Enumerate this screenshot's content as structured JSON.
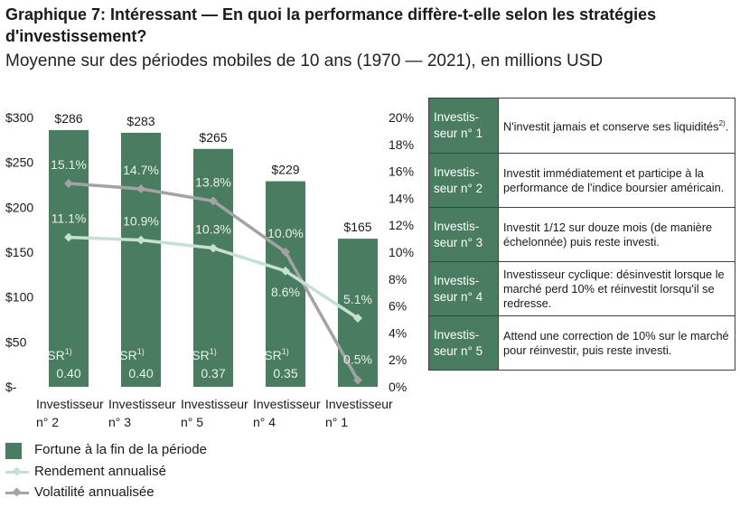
{
  "title": "Graphique 7: Intéressant — En quoi la performance diffère-t-elle selon les stratégies d'investissement?",
  "subtitle": "Moyenne sur des périodes mobiles de 10 ans (1970 — 2021), en millions USD",
  "chart_data": {
    "type": "bar",
    "categories": [
      [
        "Investisseur",
        "n° 2"
      ],
      [
        "Investisseur",
        "n° 3"
      ],
      [
        "Investisseur",
        "n° 5"
      ],
      [
        "Investisseur",
        "n° 4"
      ],
      [
        "Investisseur",
        "n° 1"
      ]
    ],
    "y_left": {
      "ticks": [
        "$-",
        "$50",
        "$100",
        "$150",
        "$200",
        "$250",
        "$300"
      ],
      "ylim": [
        0,
        300
      ]
    },
    "y_right": {
      "ticks": [
        "0%",
        "2%",
        "4%",
        "6%",
        "8%",
        "10%",
        "12%",
        "14%",
        "16%",
        "18%",
        "20%"
      ],
      "ylim": [
        0,
        20
      ]
    },
    "series": [
      {
        "name": "Fortune à la fin de la période",
        "kind": "bar",
        "axis": "left",
        "values": [
          286,
          283,
          265,
          229,
          165
        ],
        "labels": [
          "$286",
          "$283",
          "$265",
          "$229",
          "$165"
        ]
      },
      {
        "name": "Rendement annualisé",
        "kind": "line",
        "axis": "right",
        "values": [
          11.1,
          10.9,
          10.3,
          8.6,
          5.1
        ],
        "labels": [
          "11.1%",
          "10.9%",
          "10.3%",
          "8.6%",
          "5.1%"
        ]
      },
      {
        "name": "Volatilité annualisée",
        "kind": "line",
        "axis": "right",
        "values": [
          15.1,
          14.7,
          13.8,
          10.0,
          0.5
        ],
        "labels": [
          "15.1%",
          "14.7%",
          "13.8%",
          "10.0%",
          "0.5%"
        ]
      }
    ],
    "sharpe": {
      "label": "SR",
      "footnote": "1)",
      "values": [
        "0.40",
        "0.40",
        "0.37",
        "0.35",
        null
      ]
    },
    "colors": {
      "bar": "#4a7c61",
      "return_line": "#c5e1d3",
      "volatility_line": "#a3a3a3",
      "bar_text": "#e8f1ec"
    },
    "grid": false,
    "legend_position": "bottom-left"
  },
  "table": {
    "rows": [
      {
        "label": [
          "Investis-",
          "seur n° 1"
        ],
        "desc": "N'investit jamais et conserve ses liquidités",
        "note": "2)"
      },
      {
        "label": [
          "Investis-",
          "seur n° 2"
        ],
        "desc": "Investit immédiatement et participe à la performance de l'indice boursier américain.",
        "note": ""
      },
      {
        "label": [
          "Investis-",
          "seur n° 3"
        ],
        "desc": "Investit 1/12 sur douze mois (de manière échelonnée) puis reste investi.",
        "note": ""
      },
      {
        "label": [
          "Investis-",
          "seur n° 4"
        ],
        "desc": "Investisseur cyclique: désinvestit lorsque le marché perd 10% et réinvestit lorsqu'il se redresse.",
        "note": ""
      },
      {
        "label": [
          "Investis-",
          "seur n° 5"
        ],
        "desc": "Attend une correction de 10% sur le marché pour réinvestir, puis reste investi.",
        "note": ""
      }
    ]
  }
}
